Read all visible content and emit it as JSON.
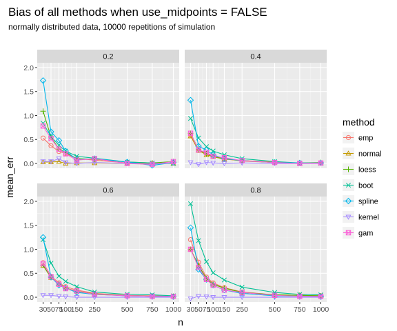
{
  "chart_data": {
    "type": "line",
    "title": "Bias of all methods when use_midpoints = FALSE",
    "subtitle": "normally distributed data, 10000 repetitions of simulation",
    "xlabel": "n",
    "ylabel": "mean_err",
    "x_scale": "sqrt",
    "x_ticks": [
      30,
      50,
      75,
      100,
      150,
      250,
      500,
      750,
      1000
    ],
    "x_tick_labels": [
      "30",
      "50",
      "75",
      "100",
      "150",
      "250",
      "500",
      "750",
      "1000"
    ],
    "y_ticks": [
      0.0,
      0.5,
      1.0,
      1.5,
      2.0
    ],
    "y_tick_labels": [
      "0.0",
      "0.5",
      "1.0",
      "1.5",
      "2.0"
    ],
    "ylim": [
      -0.1,
      2.1
    ],
    "grid": true,
    "legend_title": "method",
    "legend_position": "right",
    "x": [
      30,
      50,
      75,
      100,
      150,
      250,
      500,
      750,
      1000
    ],
    "methods": [
      {
        "name": "emp",
        "color": "#F8766D",
        "shape": "circle"
      },
      {
        "name": "normal",
        "color": "#C49A00",
        "shape": "triangle"
      },
      {
        "name": "loess",
        "color": "#53B400",
        "shape": "plus"
      },
      {
        "name": "boot",
        "color": "#00C094",
        "shape": "cross"
      },
      {
        "name": "spline",
        "color": "#00B6EB",
        "shape": "diamond"
      },
      {
        "name": "kernel",
        "color": "#A58AFF",
        "shape": "triangle-down"
      },
      {
        "name": "gam",
        "color": "#FB61D7",
        "shape": "square-cross"
      }
    ],
    "panels": [
      {
        "label": "0.2",
        "series": {
          "emp": [
            0.53,
            0.37,
            0.25,
            0.21,
            0.1,
            0.07,
            0.01,
            0.0,
            0.01
          ],
          "normal": [
            0.03,
            0.03,
            0.04,
            0.0,
            0.01,
            0.01,
            0.0,
            0.0,
            0.0
          ],
          "loess": [
            1.09,
            0.55,
            0.3,
            0.23,
            0.1,
            0.09,
            0.03,
            0.01,
            0.04
          ],
          "boot": [
            0.84,
            0.56,
            0.38,
            0.26,
            0.15,
            0.11,
            0.03,
            0.01,
            0.0
          ],
          "spline": [
            1.73,
            0.66,
            0.48,
            0.26,
            0.08,
            0.1,
            0.03,
            -0.04,
            0.02
          ],
          "kernel": [
            0.04,
            0.04,
            0.1,
            0.02,
            0.0,
            0.02,
            0.0,
            -0.01,
            0.01
          ],
          "gam": [
            0.78,
            0.52,
            0.3,
            0.2,
            0.07,
            0.1,
            0.0,
            -0.02,
            0.04
          ]
        }
      },
      {
        "label": "0.4",
        "series": {
          "emp": [
            0.59,
            0.27,
            0.21,
            0.14,
            0.1,
            0.05,
            0.02,
            0.01,
            0.01
          ],
          "normal": [
            0.57,
            0.27,
            0.18,
            0.14,
            0.09,
            0.06,
            0.03,
            0.0,
            0.01
          ],
          "loess": [
            0.63,
            0.29,
            0.2,
            0.15,
            0.1,
            0.06,
            0.02,
            0.01,
            0.02
          ],
          "boot": [
            0.94,
            0.53,
            0.35,
            0.26,
            0.18,
            0.1,
            0.04,
            0.01,
            0.0
          ],
          "spline": [
            1.32,
            0.36,
            0.28,
            0.18,
            0.1,
            0.06,
            0.02,
            0.01,
            0.01
          ],
          "kernel": [
            0.02,
            -0.02,
            0.02,
            0.01,
            0.0,
            0.01,
            0.0,
            0.0,
            0.0
          ],
          "gam": [
            0.63,
            0.28,
            0.23,
            0.15,
            0.12,
            0.06,
            0.02,
            0.0,
            0.01
          ]
        }
      },
      {
        "label": "0.6",
        "series": {
          "emp": [
            0.72,
            0.44,
            0.3,
            0.22,
            0.15,
            0.08,
            0.04,
            0.03,
            0.02
          ],
          "normal": [
            0.66,
            0.41,
            0.28,
            0.19,
            0.13,
            0.07,
            0.03,
            0.02,
            0.02
          ],
          "loess": [
            0.67,
            0.41,
            0.28,
            0.19,
            0.12,
            0.07,
            0.03,
            0.02,
            0.02
          ],
          "boot": [
            1.2,
            0.71,
            0.44,
            0.33,
            0.22,
            0.11,
            0.06,
            0.05,
            0.03
          ],
          "spline": [
            1.25,
            0.42,
            0.25,
            0.19,
            0.1,
            0.06,
            0.03,
            0.02,
            0.01
          ],
          "kernel": [
            0.04,
            0.04,
            0.02,
            0.01,
            0.0,
            0.0,
            0.0,
            0.0,
            0.0
          ],
          "gam": [
            0.7,
            0.43,
            0.27,
            0.18,
            0.13,
            0.06,
            0.03,
            0.02,
            0.02
          ]
        }
      },
      {
        "label": "0.8",
        "series": {
          "emp": [
            1.2,
            0.73,
            0.42,
            0.3,
            0.2,
            0.11,
            0.05,
            0.04,
            0.03
          ],
          "normal": [
            1.0,
            0.66,
            0.39,
            0.27,
            0.19,
            0.1,
            0.05,
            0.04,
            0.03
          ],
          "loess": [
            1.0,
            0.66,
            0.39,
            0.27,
            0.19,
            0.1,
            0.05,
            0.04,
            0.03
          ],
          "boot": [
            1.95,
            1.18,
            0.74,
            0.51,
            0.36,
            0.21,
            0.1,
            0.06,
            0.05
          ],
          "spline": [
            1.45,
            0.58,
            0.37,
            0.25,
            0.15,
            0.08,
            0.03,
            0.02,
            0.01
          ],
          "kernel": [
            -0.03,
            0.02,
            0.01,
            0.0,
            0.0,
            0.0,
            0.0,
            0.0,
            0.0
          ],
          "gam": [
            1.0,
            0.62,
            0.37,
            0.25,
            0.15,
            0.1,
            0.04,
            0.02,
            0.02
          ]
        }
      }
    ]
  }
}
